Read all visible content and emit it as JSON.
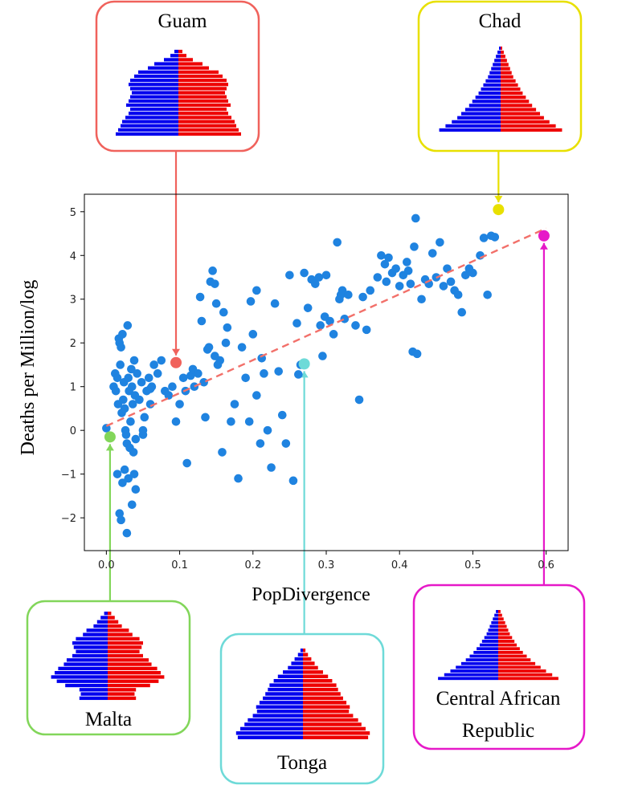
{
  "colors": {
    "points": "#1f83e0",
    "trend": "#f2706a",
    "male": "#0000ee",
    "female": "#ee0000",
    "guam": "#f0625c",
    "chad": "#e8e000",
    "malta": "#82d65a",
    "tonga": "#6edad8",
    "car": "#e619c8"
  },
  "chart_data": {
    "type": "scatter",
    "xlabel": "PopDivergence",
    "ylabel": "Deaths per Million/log",
    "xlim": [
      -0.03,
      0.63
    ],
    "ylim": [
      -2.75,
      5.4
    ],
    "xticks": [
      "0.0",
      "0.1",
      "0.2",
      "0.3",
      "0.4",
      "0.5",
      "0.6"
    ],
    "yticks": [
      "−2",
      "−1",
      "0",
      "1",
      "2",
      "3",
      "4",
      "5"
    ],
    "trend": {
      "x": [
        0.0,
        0.6
      ],
      "y": [
        0.1,
        4.62
      ]
    },
    "points": [
      [
        0.01,
        1.0
      ],
      [
        0.012,
        1.3
      ],
      [
        0.013,
        0.9
      ],
      [
        0.015,
        1.2
      ],
      [
        0.016,
        0.6
      ],
      [
        0.017,
        2.1
      ],
      [
        0.018,
        2.0
      ],
      [
        0.019,
        1.5
      ],
      [
        0.02,
        1.9
      ],
      [
        0.021,
        0.4
      ],
      [
        0.022,
        2.2
      ],
      [
        0.023,
        0.7
      ],
      [
        0.024,
        1.1
      ],
      [
        0.025,
        0.5
      ],
      [
        0.026,
        0.0
      ],
      [
        0.027,
        -0.1
      ],
      [
        0.028,
        -0.3
      ],
      [
        0.029,
        2.4
      ],
      [
        0.03,
        1.2
      ],
      [
        0.031,
        0.9
      ],
      [
        0.032,
        -0.4
      ],
      [
        0.033,
        0.2
      ],
      [
        0.034,
        1.4
      ],
      [
        0.035,
        1.0
      ],
      [
        0.036,
        0.6
      ],
      [
        0.037,
        -0.5
      ],
      [
        0.038,
        1.6
      ],
      [
        0.039,
        0.8
      ],
      [
        0.04,
        -0.2
      ],
      [
        0.042,
        1.3
      ],
      [
        0.045,
        0.7
      ],
      [
        0.048,
        1.1
      ],
      [
        0.05,
        -0.1
      ],
      [
        0.052,
        0.3
      ],
      [
        0.055,
        0.9
      ],
      [
        0.058,
        1.2
      ],
      [
        0.06,
        0.6
      ],
      [
        0.062,
        1.0
      ],
      [
        0.065,
        1.5
      ],
      [
        0.07,
        1.3
      ],
      [
        0.015,
        -1.0
      ],
      [
        0.018,
        -1.9
      ],
      [
        0.02,
        -2.05
      ],
      [
        0.022,
        -1.2
      ],
      [
        0.025,
        -0.9
      ],
      [
        0.028,
        -2.35
      ],
      [
        0.03,
        -1.1
      ],
      [
        0.035,
        -1.7
      ],
      [
        0.04,
        -1.35
      ],
      [
        0.038,
        -1.0
      ],
      [
        0.075,
        1.6
      ],
      [
        0.08,
        0.9
      ],
      [
        0.085,
        0.8
      ],
      [
        0.09,
        1.0
      ],
      [
        0.095,
        0.2
      ],
      [
        0.1,
        0.6
      ],
      [
        0.105,
        1.2
      ],
      [
        0.108,
        0.9
      ],
      [
        0.11,
        -0.75
      ],
      [
        0.115,
        1.25
      ],
      [
        0.118,
        1.4
      ],
      [
        0.12,
        1.0
      ],
      [
        0.125,
        1.3
      ],
      [
        0.128,
        3.05
      ],
      [
        0.13,
        2.5
      ],
      [
        0.133,
        1.1
      ],
      [
        0.135,
        0.3
      ],
      [
        0.138,
        1.85
      ],
      [
        0.14,
        1.9
      ],
      [
        0.142,
        3.4
      ],
      [
        0.145,
        3.65
      ],
      [
        0.148,
        3.35
      ],
      [
        0.15,
        2.9
      ],
      [
        0.152,
        1.5
      ],
      [
        0.155,
        1.6
      ],
      [
        0.158,
        -0.5
      ],
      [
        0.16,
        2.7
      ],
      [
        0.165,
        2.35
      ],
      [
        0.17,
        0.2
      ],
      [
        0.175,
        0.6
      ],
      [
        0.18,
        -1.1
      ],
      [
        0.185,
        1.9
      ],
      [
        0.19,
        1.2
      ],
      [
        0.195,
        0.2
      ],
      [
        0.2,
        2.2
      ],
      [
        0.205,
        0.8
      ],
      [
        0.21,
        -0.3
      ],
      [
        0.212,
        1.65
      ],
      [
        0.215,
        1.3
      ],
      [
        0.22,
        0.0
      ],
      [
        0.225,
        -0.85
      ],
      [
        0.23,
        2.9
      ],
      [
        0.235,
        1.35
      ],
      [
        0.24,
        0.35
      ],
      [
        0.245,
        -0.3
      ],
      [
        0.25,
        3.55
      ],
      [
        0.255,
        -1.15
      ],
      [
        0.26,
        2.45
      ],
      [
        0.265,
        1.5
      ],
      [
        0.27,
        3.6
      ],
      [
        0.275,
        2.8
      ],
      [
        0.28,
        3.45
      ],
      [
        0.285,
        3.35
      ],
      [
        0.29,
        3.5
      ],
      [
        0.292,
        2.4
      ],
      [
        0.295,
        1.7
      ],
      [
        0.298,
        2.6
      ],
      [
        0.3,
        3.55
      ],
      [
        0.305,
        2.5
      ],
      [
        0.31,
        2.2
      ],
      [
        0.315,
        4.3
      ],
      [
        0.318,
        3.0
      ],
      [
        0.32,
        3.1
      ],
      [
        0.322,
        3.2
      ],
      [
        0.325,
        2.55
      ],
      [
        0.33,
        3.1
      ],
      [
        0.34,
        2.4
      ],
      [
        0.345,
        0.7
      ],
      [
        0.35,
        3.05
      ],
      [
        0.355,
        2.3
      ],
      [
        0.36,
        3.2
      ],
      [
        0.37,
        3.5
      ],
      [
        0.375,
        4.0
      ],
      [
        0.38,
        3.8
      ],
      [
        0.382,
        3.4
      ],
      [
        0.385,
        3.95
      ],
      [
        0.39,
        3.6
      ],
      [
        0.395,
        3.7
      ],
      [
        0.4,
        3.3
      ],
      [
        0.405,
        3.55
      ],
      [
        0.41,
        3.85
      ],
      [
        0.412,
        3.65
      ],
      [
        0.415,
        3.35
      ],
      [
        0.418,
        1.8
      ],
      [
        0.42,
        4.2
      ],
      [
        0.422,
        4.85
      ],
      [
        0.424,
        1.75
      ],
      [
        0.43,
        3.0
      ],
      [
        0.435,
        3.45
      ],
      [
        0.44,
        3.35
      ],
      [
        0.445,
        4.05
      ],
      [
        0.45,
        3.5
      ],
      [
        0.455,
        4.3
      ],
      [
        0.46,
        3.3
      ],
      [
        0.465,
        3.7
      ],
      [
        0.47,
        3.4
      ],
      [
        0.475,
        3.2
      ],
      [
        0.48,
        3.1
      ],
      [
        0.485,
        2.7
      ],
      [
        0.49,
        3.55
      ],
      [
        0.495,
        3.7
      ],
      [
        0.5,
        3.6
      ],
      [
        0.51,
        4.0
      ],
      [
        0.515,
        4.4
      ],
      [
        0.52,
        3.1
      ],
      [
        0.525,
        4.45
      ],
      [
        0.53,
        4.42
      ],
      [
        0.0,
        0.05
      ],
      [
        0.05,
        0.0
      ],
      [
        0.06,
        0.95
      ],
      [
        0.262,
        1.28
      ],
      [
        0.197,
        2.95
      ],
      [
        0.205,
        3.2
      ],
      [
        0.148,
        1.7
      ],
      [
        0.163,
        2.0
      ]
    ],
    "highlights": [
      {
        "label": "Guam",
        "x": 0.095,
        "y": 1.55,
        "color": "#f0625c"
      },
      {
        "label": "Chad",
        "x": 0.535,
        "y": 5.05,
        "color": "#e8e000"
      },
      {
        "label": "Malta",
        "x": 0.005,
        "y": -0.15,
        "color": "#82d65a"
      },
      {
        "label": "Tonga",
        "x": 0.27,
        "y": 1.52,
        "color": "#6edad8"
      },
      {
        "label": "Central African Republic",
        "x": 0.597,
        "y": 4.45,
        "color": "#e619c8"
      }
    ],
    "insets": {
      "guam": {
        "title": "Guam",
        "pyramid": [
          0.05,
          0.1,
          0.18,
          0.3,
          0.38,
          0.5,
          0.55,
          0.6,
          0.62,
          0.6,
          0.58,
          0.6,
          0.62,
          0.65,
          0.6,
          0.62,
          0.66,
          0.7,
          0.72,
          0.75,
          0.78
        ]
      },
      "chad": {
        "title": "Chad",
        "pyramid": [
          0.02,
          0.04,
          0.06,
          0.08,
          0.1,
          0.12,
          0.14,
          0.16,
          0.19,
          0.22,
          0.25,
          0.28,
          0.32,
          0.36,
          0.4,
          0.45,
          0.5,
          0.55,
          0.62,
          0.7,
          0.78
        ]
      },
      "malta": {
        "title": "Malta",
        "pyramid": [
          0.05,
          0.1,
          0.15,
          0.2,
          0.3,
          0.35,
          0.45,
          0.5,
          0.48,
          0.45,
          0.5,
          0.58,
          0.62,
          0.7,
          0.75,
          0.8,
          0.72,
          0.6,
          0.4,
          0.38,
          0.4
        ]
      },
      "tonga": {
        "title": "Tonga",
        "pyramid": [
          0.03,
          0.06,
          0.1,
          0.14,
          0.18,
          0.24,
          0.3,
          0.35,
          0.4,
          0.42,
          0.45,
          0.48,
          0.52,
          0.56,
          0.55,
          0.6,
          0.66,
          0.7,
          0.75,
          0.8,
          0.78
        ]
      },
      "car": {
        "title_lines": [
          "Central African",
          "Republic"
        ],
        "pyramid": [
          0.03,
          0.05,
          0.07,
          0.09,
          0.11,
          0.13,
          0.15,
          0.18,
          0.21,
          0.24,
          0.28,
          0.32,
          0.37,
          0.42,
          0.48,
          0.55,
          0.62,
          0.7,
          0.78
        ]
      }
    }
  }
}
